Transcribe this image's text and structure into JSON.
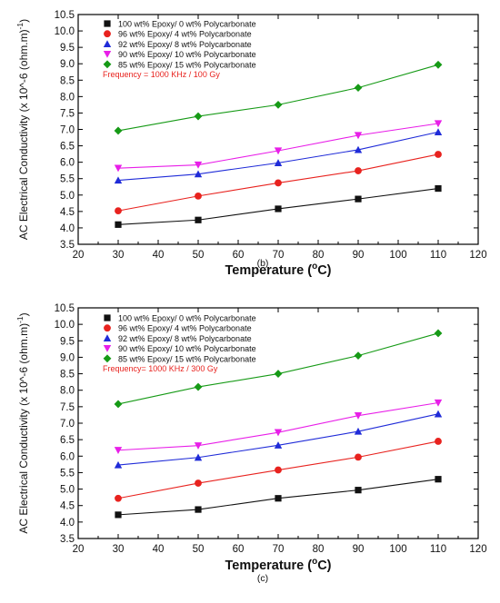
{
  "chart_data": [
    {
      "type": "line",
      "caption": "(b)",
      "xlabel": "Temperature (",
      "xlabel_sup": "o",
      "xlabel_tail": "C)",
      "ylabel": "AC Electrical Conductivity (x 10^-6 (ohm.m)",
      "ylabel_sup": "-1",
      "ylabel_tail": ")",
      "xlim": [
        20,
        120
      ],
      "xticks": [
        20,
        30,
        40,
        50,
        60,
        70,
        80,
        90,
        100,
        110,
        120
      ],
      "ylim": [
        3.5,
        10.5
      ],
      "yticks": [
        "3.5",
        "4.0",
        "4.5",
        "5.0",
        "5.5",
        "6.0",
        "6.5",
        "7.0",
        "7.5",
        "8.0",
        "8.5",
        "9.0",
        "9.5",
        "10.0",
        "10.5"
      ],
      "annotation": "Frequency = 1000 KHz / 100 Gy",
      "x": [
        30,
        50,
        70,
        90,
        110
      ],
      "series": [
        {
          "name": "100 wt% Epoxy/ 0 wt% Polycarbonate",
          "values": [
            4.1,
            4.24,
            4.58,
            4.88,
            5.2
          ],
          "color": "#111111",
          "marker": "square"
        },
        {
          "name": "96 wt% Epoxy/ 4 wt% Polycarbonate",
          "values": [
            4.52,
            4.97,
            5.37,
            5.74,
            6.24
          ],
          "color": "#e8221e",
          "marker": "circle"
        },
        {
          "name": "92 wt% Epoxy/ 8 wt% Polycarbonate",
          "values": [
            5.45,
            5.64,
            5.98,
            6.38,
            6.92
          ],
          "color": "#1f2bd8",
          "marker": "triangle-up"
        },
        {
          "name": "90 wt% Epoxy/ 10 wt% Polycarbonate",
          "values": [
            5.82,
            5.92,
            6.35,
            6.82,
            7.18
          ],
          "color": "#e81ee8",
          "marker": "triangle-down"
        },
        {
          "name": "85 wt% Epoxy/ 15 wt% Polycarbonate",
          "values": [
            6.96,
            7.4,
            7.75,
            8.27,
            8.97
          ],
          "color": "#169a16",
          "marker": "diamond"
        }
      ]
    },
    {
      "type": "line",
      "caption": "(c)",
      "xlabel": "Temperature (",
      "xlabel_sup": "o",
      "xlabel_tail": "C)",
      "ylabel": "AC Electrical Conductivity (x 10^-6 (ohm.m)",
      "ylabel_sup": "-1",
      "ylabel_tail": ")",
      "xlim": [
        20,
        120
      ],
      "xticks": [
        20,
        30,
        40,
        50,
        60,
        70,
        80,
        90,
        100,
        110,
        120
      ],
      "ylim": [
        3.5,
        10.5
      ],
      "yticks": [
        "3.5",
        "4.0",
        "4.5",
        "5.0",
        "5.5",
        "6.0",
        "6.5",
        "7.0",
        "7.5",
        "8.0",
        "8.5",
        "9.0",
        "9.5",
        "10.0",
        "10.5"
      ],
      "annotation": "Frequency= 1000 KHz / 300 Gy",
      "x": [
        30,
        50,
        70,
        90,
        110
      ],
      "series": [
        {
          "name": "100 wt% Epoxy/ 0 wt% Polycarbonate",
          "values": [
            4.22,
            4.38,
            4.72,
            4.97,
            5.3
          ],
          "color": "#111111",
          "marker": "square"
        },
        {
          "name": "96 wt% Epoxy/ 4 wt% Polycarbonate",
          "values": [
            4.72,
            5.18,
            5.58,
            5.97,
            6.45
          ],
          "color": "#e8221e",
          "marker": "circle"
        },
        {
          "name": "92 wt% Epoxy/ 8 wt% Polycarbonate",
          "values": [
            5.73,
            5.96,
            6.33,
            6.75,
            7.28
          ],
          "color": "#1f2bd8",
          "marker": "triangle-up"
        },
        {
          "name": "90 wt% Epoxy/ 10 wt% Polycarbonate",
          "values": [
            6.18,
            6.32,
            6.72,
            7.23,
            7.62
          ],
          "color": "#e81ee8",
          "marker": "triangle-down"
        },
        {
          "name": "85 wt% Epoxy/ 15 wt% Polycarbonate",
          "values": [
            7.58,
            8.1,
            8.5,
            9.05,
            9.73
          ],
          "color": "#169a16",
          "marker": "diamond"
        }
      ]
    }
  ]
}
